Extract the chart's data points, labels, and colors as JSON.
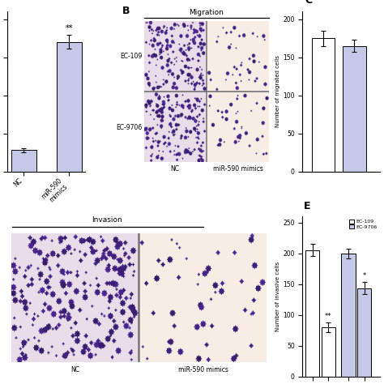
{
  "panel_A": {
    "categories": [
      "NC",
      "miR-590\nmimics"
    ],
    "values": [
      28,
      170
    ],
    "errors": [
      3,
      9
    ],
    "bar_color": "#c5c9e8",
    "ylim": [
      0,
      210
    ],
    "yticks": [
      0,
      50,
      100,
      150,
      200
    ],
    "annotation": "**",
    "annotation_bar": 1
  },
  "panel_C": {
    "ylabel": "Number of migrated cells",
    "ylim": [
      0,
      210
    ],
    "yticks": [
      0,
      50,
      100,
      150,
      200
    ]
  },
  "panel_E": {
    "values": [
      205,
      80,
      200,
      143
    ],
    "errors": [
      10,
      8,
      8,
      10
    ],
    "bar_colors": [
      "#ffffff",
      "#ffffff",
      "#c5c9e8",
      "#c5c9e8"
    ],
    "ylabel": "Number of invasive cells",
    "ylim": [
      0,
      260
    ],
    "yticks": [
      0,
      50,
      100,
      150,
      200,
      250
    ],
    "annotations": [
      "",
      "**",
      "",
      "*"
    ],
    "legend_labels": [
      "EC-109",
      "EC-9706"
    ],
    "legend_colors": [
      "#ffffff",
      "#c5c9e8"
    ]
  },
  "micro_dense_bg": [
    0.92,
    0.87,
    0.92
  ],
  "micro_sparse_bg": [
    0.97,
    0.93,
    0.9
  ],
  "micro_cell_color": [
    0.3,
    0.15,
    0.58
  ],
  "bar_edge_color": "#000000",
  "background_color": "#ffffff"
}
